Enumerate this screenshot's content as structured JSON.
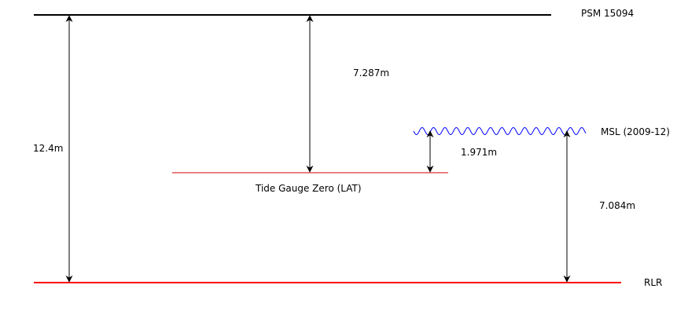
{
  "levels": {
    "psm": {
      "label": "PSM 15094",
      "color": "#000000"
    },
    "msl": {
      "label": "MSL (2009-12)",
      "color": "#0000ff"
    },
    "tide_gauge_zero": {
      "label": "Tide Gauge Zero (LAT)",
      "color": "#cc0000"
    },
    "rlr": {
      "label": "RLR",
      "color": "#ff0000"
    }
  },
  "measurements": {
    "psm_to_rlr": "12.4m",
    "psm_to_tgz": "7.287m",
    "msl_to_tgz": "1.971m",
    "msl_to_rlr": "7.084m"
  },
  "colors": {
    "arrow": "#000000",
    "background": "#ffffff"
  }
}
